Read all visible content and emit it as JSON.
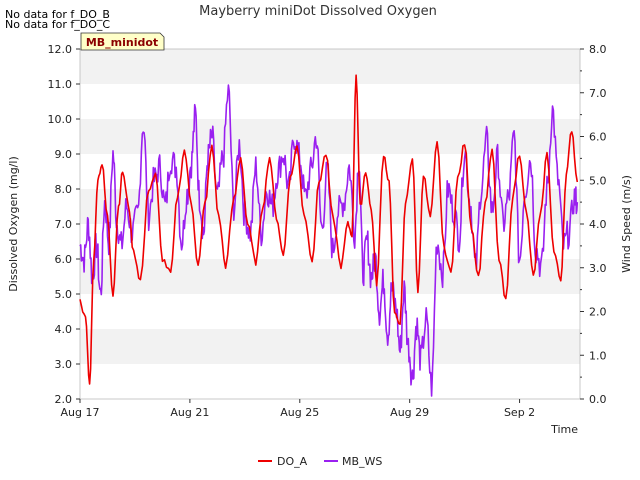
{
  "notes": [
    "No data for f_DO_B",
    "No data for f_DO_C"
  ],
  "chart_data": {
    "type": "line",
    "title": "Mayberry miniDot Dissolved Oxygen",
    "site_label": "MB_minidot",
    "xlabel": "Time",
    "ylabel_left": "Dissolved Oxygen (mg/l)",
    "ylabel_right": "Wind Speed (m/s)",
    "x_ticks": [
      "Aug 17",
      "Aug 21",
      "Aug 25",
      "Aug 29",
      "Sep 2"
    ],
    "xlim_days": [
      17,
      35.2
    ],
    "ylim_left": [
      2.0,
      12.0
    ],
    "ylim_right": [
      0.0,
      8.0
    ],
    "y_ticks_left": [
      "2.0",
      "3.0",
      "4.0",
      "5.0",
      "6.0",
      "7.0",
      "8.0",
      "9.0",
      "10.0",
      "11.0",
      "12.0"
    ],
    "y_ticks_right": [
      "0.0",
      "1.0",
      "2.0",
      "3.0",
      "4.0",
      "5.0",
      "6.0",
      "7.0",
      "8.0"
    ],
    "grid": "horizontal bands",
    "legend_position": "bottom",
    "series": [
      {
        "name": "DO_A",
        "axis": "left",
        "color": "#ee0000",
        "x": [
          17.0,
          17.2,
          17.35,
          17.5,
          17.65,
          17.8,
          18.0,
          18.2,
          18.4,
          18.55,
          18.75,
          18.95,
          19.2,
          19.5,
          19.75,
          20.0,
          20.3,
          20.55,
          20.8,
          21.05,
          21.3,
          21.55,
          21.8,
          22.05,
          22.3,
          22.6,
          22.85,
          23.1,
          23.4,
          23.65,
          23.9,
          24.15,
          24.4,
          24.65,
          24.9,
          25.15,
          25.45,
          25.7,
          25.95,
          26.2,
          26.5,
          26.75,
          26.9,
          27.05,
          27.2,
          27.4,
          27.6,
          27.8,
          28.05,
          28.25,
          28.45,
          28.65,
          28.85,
          29.1,
          29.3,
          29.5,
          29.75,
          30.0,
          30.25,
          30.5,
          30.75,
          31.0,
          31.25,
          31.5,
          31.75,
          32.0,
          32.25,
          32.5,
          32.75,
          33.0,
          33.25,
          33.5,
          33.75,
          34.0,
          34.25,
          34.5,
          34.7,
          34.9,
          35.1
        ],
        "y": [
          4.8,
          4.3,
          2.4,
          6.0,
          8.3,
          8.7,
          7.2,
          5.0,
          7.5,
          8.5,
          7.6,
          6.2,
          5.4,
          8.0,
          8.4,
          6.0,
          5.6,
          7.8,
          9.1,
          7.6,
          5.8,
          7.6,
          9.2,
          7.2,
          5.8,
          7.7,
          8.9,
          7.0,
          5.9,
          7.5,
          8.9,
          7.2,
          6.1,
          8.3,
          9.2,
          7.3,
          6.0,
          8.2,
          9.0,
          7.2,
          5.8,
          7.0,
          6.7,
          11.3,
          7.5,
          8.5,
          7.4,
          5.3,
          9.0,
          8.2,
          4.4,
          4.2,
          7.6,
          8.9,
          5.1,
          8.4,
          7.2,
          9.3,
          6.3,
          5.6,
          8.3,
          9.3,
          6.9,
          5.5,
          7.6,
          9.1,
          6.0,
          4.8,
          7.8,
          9.0,
          7.3,
          5.5,
          7.2,
          9.0,
          6.2,
          5.4,
          8.4,
          9.7,
          8.2
        ]
      },
      {
        "name": "MB_WS",
        "axis": "right",
        "color": "#9a20f0",
        "x": [
          17.0,
          17.15,
          17.3,
          17.45,
          17.6,
          17.75,
          17.9,
          18.05,
          18.2,
          18.35,
          18.5,
          18.7,
          18.9,
          19.1,
          19.3,
          19.5,
          19.7,
          19.9,
          20.1,
          20.3,
          20.5,
          20.7,
          20.9,
          21.05,
          21.2,
          21.35,
          21.5,
          21.65,
          21.8,
          22.0,
          22.2,
          22.4,
          22.6,
          22.8,
          23.0,
          23.2,
          23.4,
          23.6,
          23.8,
          24.0,
          24.2,
          24.4,
          24.6,
          24.8,
          25.0,
          25.2,
          25.4,
          25.6,
          25.8,
          26.0,
          26.2,
          26.4,
          26.6,
          26.8,
          27.0,
          27.15,
          27.3,
          27.45,
          27.6,
          27.75,
          27.9,
          28.05,
          28.2,
          28.35,
          28.5,
          28.65,
          28.8,
          28.95,
          29.1,
          29.25,
          29.4,
          29.6,
          29.8,
          30.0,
          30.2,
          30.4,
          30.6,
          30.8,
          31.0,
          31.2,
          31.4,
          31.6,
          31.8,
          32.0,
          32.2,
          32.4,
          32.6,
          32.8,
          33.0,
          33.2,
          33.4,
          33.6,
          33.8,
          34.0,
          34.2,
          34.4,
          34.6,
          34.8,
          35.0,
          35.1
        ],
        "y": [
          3.5,
          3.2,
          4.0,
          2.8,
          3.5,
          2.4,
          4.5,
          3.6,
          5.6,
          4.0,
          3.5,
          4.4,
          3.8,
          4.2,
          6.3,
          4.2,
          5.0,
          5.3,
          4.4,
          5.5,
          5.3,
          3.6,
          4.7,
          5.4,
          6.5,
          4.6,
          3.8,
          5.5,
          6.0,
          4.6,
          5.5,
          7.0,
          4.4,
          5.8,
          4.2,
          3.8,
          5.3,
          3.8,
          4.8,
          4.4,
          5.2,
          5.6,
          4.8,
          6.0,
          5.5,
          4.6,
          5.2,
          6.0,
          3.9,
          5.2,
          3.4,
          4.3,
          4.5,
          5.3,
          3.8,
          5.5,
          2.9,
          3.6,
          2.8,
          3.2,
          2.0,
          2.7,
          1.5,
          2.5,
          2.1,
          1.1,
          2.5,
          1.2,
          0.5,
          1.7,
          0.9,
          1.8,
          0.3,
          3.6,
          2.9,
          4.8,
          4.3,
          3.7,
          5.7,
          4.5,
          3.0,
          4.8,
          5.9,
          4.3,
          5.5,
          4.0,
          4.6,
          6.0,
          3.2,
          4.8,
          5.5,
          3.4,
          3.0,
          4.8,
          6.6,
          5.0,
          3.5,
          3.8,
          4.6,
          4.5
        ]
      }
    ]
  }
}
